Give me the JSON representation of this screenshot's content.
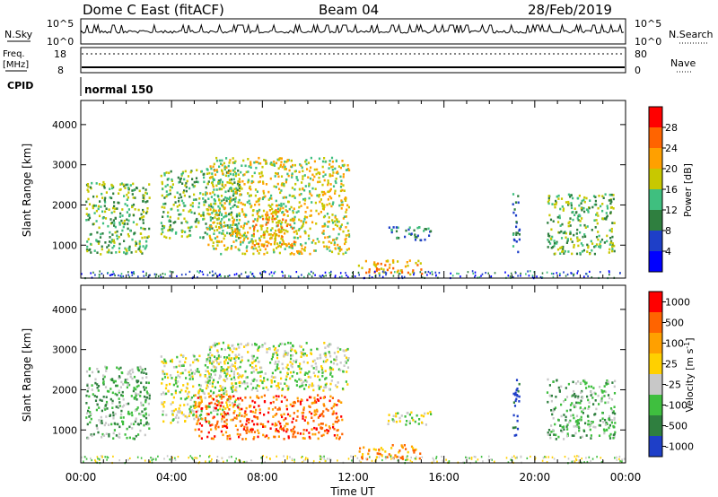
{
  "header": {
    "title": "Dome C East (fitACF)",
    "beam": "Beam 04",
    "date": "28/Feb/2019"
  },
  "nsky_panel": {
    "left_label": "N.Sky",
    "left_ticks": [
      "10^5",
      "10^0"
    ],
    "right_label": "N.Search",
    "right_ticks": [
      "10^5",
      "10^0"
    ]
  },
  "freq_panel": {
    "left_label_line1": "Freq.",
    "left_label_line2": "[MHz]",
    "left_ticks": [
      "18",
      "8"
    ],
    "right_label": "Nave",
    "right_ticks": [
      "80",
      "0"
    ]
  },
  "cpid": {
    "label": "CPID",
    "value": "normal 150"
  },
  "chart_data": [
    {
      "type": "heatmap",
      "name": "Power",
      "xlabel": "Time UT",
      "ylabel": "Slant Range [km]",
      "x_ticks": [
        "00:00",
        "04:00",
        "08:00",
        "12:00",
        "16:00",
        "20:00",
        "00:00"
      ],
      "x_range_hours": [
        0,
        24
      ],
      "y_ticks": [
        1000,
        2000,
        3000,
        4000
      ],
      "ylim": [
        180,
        4600
      ],
      "colorbar": {
        "label": "Power [dB]",
        "ticks": [
          "28",
          "24",
          "20",
          "16",
          "12",
          "8",
          "4"
        ],
        "range": [
          0,
          32
        ],
        "colors": [
          "#0000ff",
          "#1e3fc8",
          "#2f7f3f",
          "#3fbf7f",
          "#c8c800",
          "#ffa000",
          "#ff6400",
          "#ff0000"
        ]
      },
      "echo_regions": [
        {
          "t0": 0.2,
          "t1": 3.0,
          "r0": 800,
          "r1": 2600,
          "level": 12
        },
        {
          "t0": 3.5,
          "t1": 7.0,
          "r0": 1200,
          "r1": 2900,
          "level": 14
        },
        {
          "t0": 5.5,
          "t1": 11.8,
          "r0": 800,
          "r1": 3200,
          "level": 16
        },
        {
          "t0": 7.5,
          "t1": 9.5,
          "r0": 1000,
          "r1": 1900,
          "level": 20
        },
        {
          "t0": 13.5,
          "t1": 15.5,
          "r0": 1150,
          "r1": 1500,
          "level": 8
        },
        {
          "t0": 12.2,
          "t1": 15.0,
          "r0": 300,
          "r1": 650,
          "level": 20
        },
        {
          "t0": 19.0,
          "t1": 19.3,
          "r0": 800,
          "r1": 2300,
          "level": 10
        },
        {
          "t0": 20.5,
          "t1": 23.5,
          "r0": 800,
          "r1": 2300,
          "level": 12
        }
      ]
    },
    {
      "type": "heatmap",
      "name": "Velocity",
      "xlabel": "Time UT",
      "ylabel": "Slant Range [km]",
      "x_ticks": [
        "00:00",
        "04:00",
        "08:00",
        "12:00",
        "16:00",
        "20:00",
        "00:00"
      ],
      "x_range_hours": [
        0,
        24
      ],
      "y_ticks": [
        1000,
        2000,
        3000,
        4000
      ],
      "ylim": [
        180,
        4600
      ],
      "colorbar": {
        "label": "Velocity [m s^-1]",
        "ticks": [
          "1000",
          "500",
          "100",
          "25",
          "-25",
          "-100",
          "-500",
          "-1000"
        ],
        "colors": [
          "#1e3fc8",
          "#2f7f3f",
          "#3fbf3f",
          "#c8c8c8",
          "#ffd000",
          "#ffa000",
          "#ff6400",
          "#ff0000"
        ]
      },
      "echo_regions": [
        {
          "t0": 0.2,
          "t1": 3.0,
          "r0": 800,
          "r1": 2600,
          "level": "100"
        },
        {
          "t0": 3.5,
          "t1": 7.0,
          "r0": 1200,
          "r1": 2900,
          "level": "25"
        },
        {
          "t0": 5.5,
          "t1": 11.8,
          "r0": 2000,
          "r1": 3200,
          "level": "25"
        },
        {
          "t0": 5.0,
          "t1": 11.5,
          "r0": 800,
          "r1": 1900,
          "level": "-500"
        },
        {
          "t0": 13.5,
          "t1": 15.5,
          "r0": 1150,
          "r1": 1500,
          "level": "25"
        },
        {
          "t0": 12.2,
          "t1": 15.0,
          "r0": 300,
          "r1": 650,
          "level": "-100"
        },
        {
          "t0": 19.0,
          "t1": 19.3,
          "r0": 800,
          "r1": 2300,
          "level": "1000"
        },
        {
          "t0": 20.5,
          "t1": 23.5,
          "r0": 800,
          "r1": 2300,
          "level": "100"
        }
      ]
    }
  ]
}
